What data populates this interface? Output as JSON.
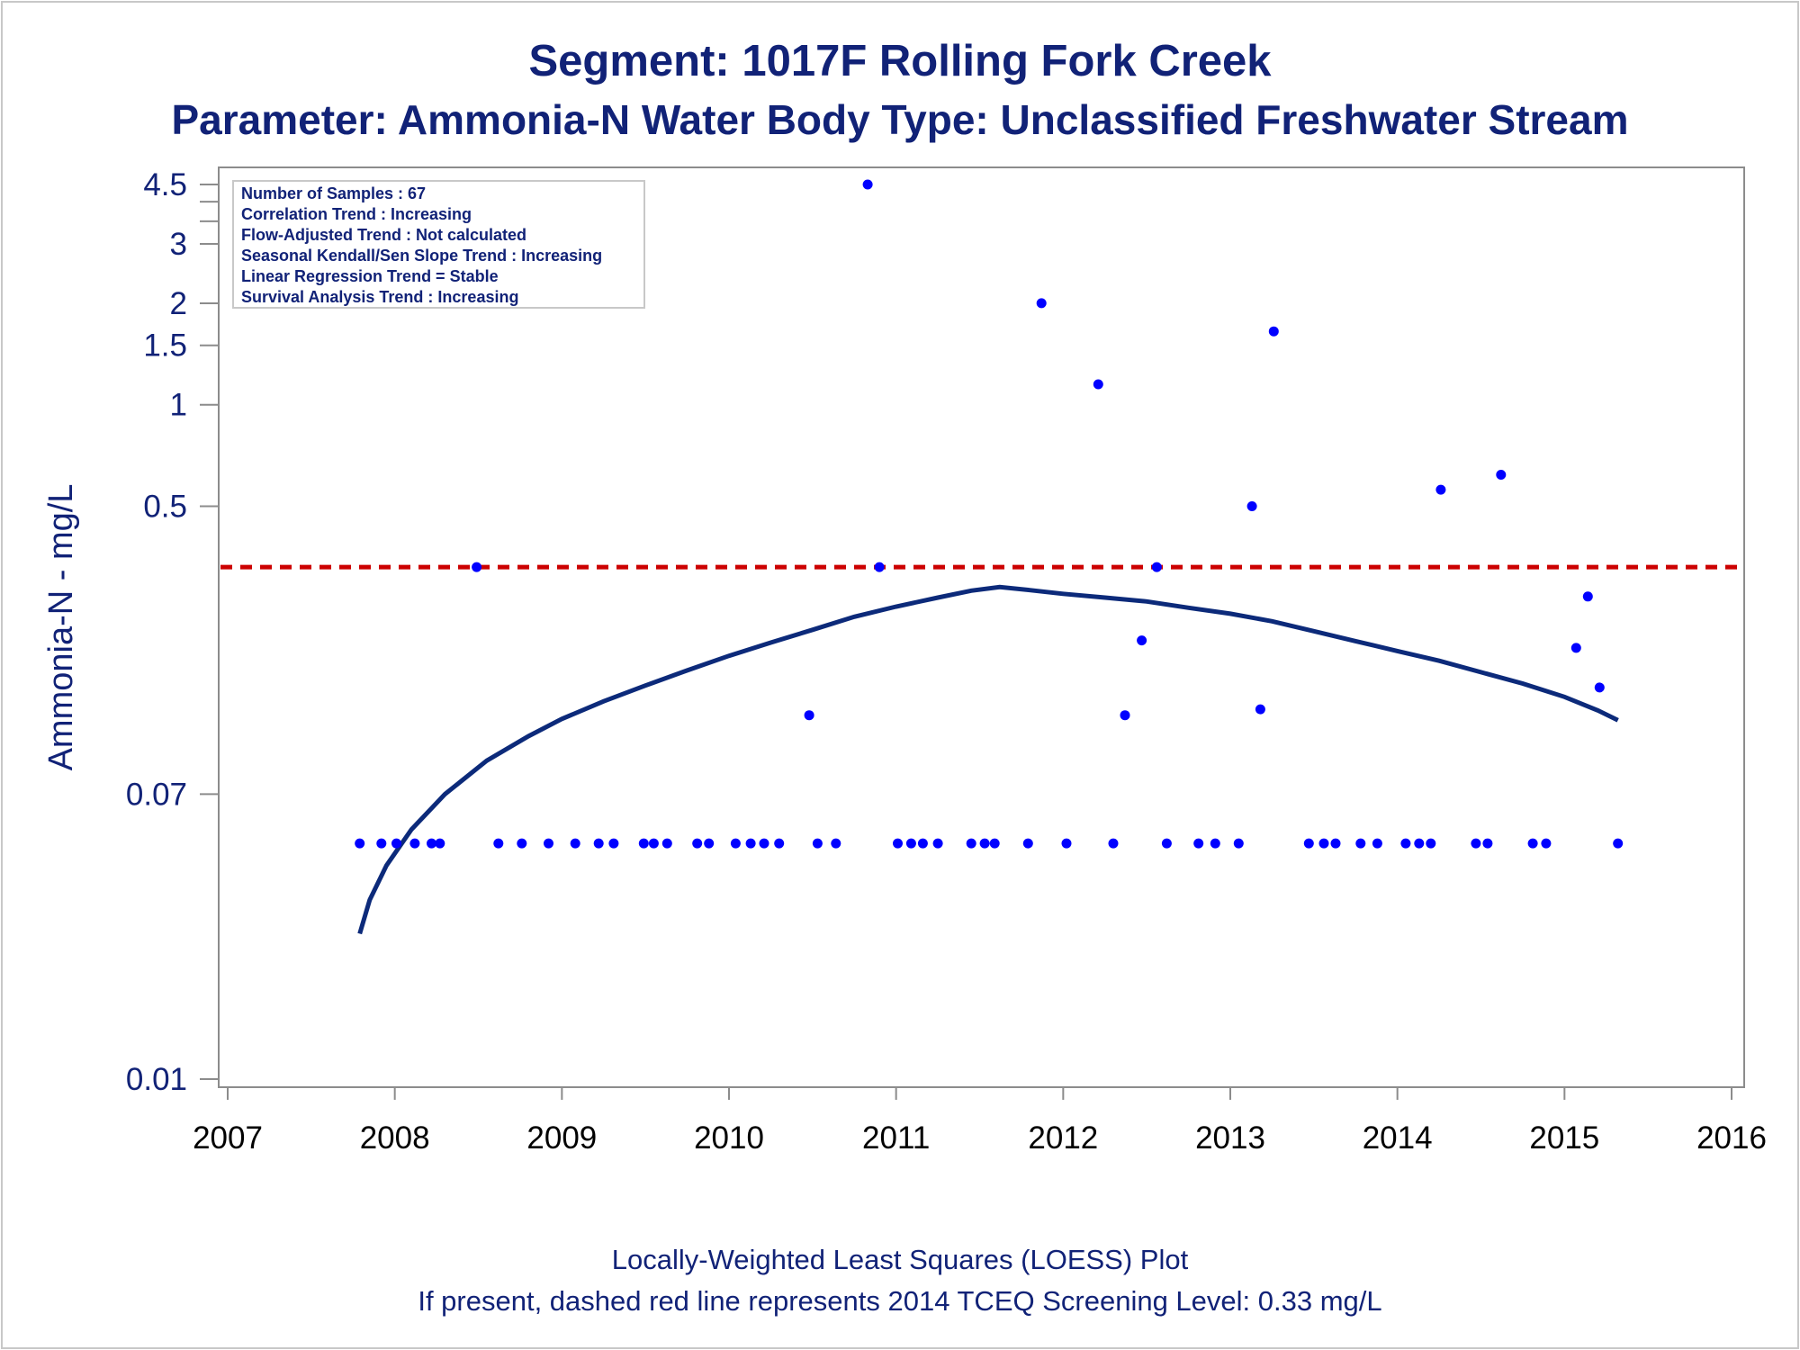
{
  "titles": {
    "line1": "Segment: 1017F  Rolling Fork Creek",
    "line2": "Parameter: Ammonia-N   Water Body Type: Unclassified Freshwater Stream"
  },
  "footnotes": {
    "line1": "Locally-Weighted Least Squares (LOESS) Plot",
    "line2": "If present, dashed red line represents 2014 TCEQ Screening Level: 0.33 mg/L"
  },
  "stats_box": [
    "Number of Samples : 67",
    "Correlation Trend : Increasing",
    "Flow-Adjusted Trend : Not calculated",
    "Seasonal Kendall/Sen Slope Trend : Increasing",
    "Linear Regression Trend = Stable",
    "Survival Analysis Trend : Increasing"
  ],
  "colors": {
    "text": "#112277",
    "points": "#0000ff",
    "loess": "#0c2a7a",
    "screening": "#cc0000",
    "axis": "#8c8c8c"
  },
  "chart_data": {
    "type": "scatter",
    "ylabel": "Ammonia-N - mg/L",
    "xlabel": "",
    "yscale": "log",
    "xlim": [
      2007,
      2016
    ],
    "ylim": [
      0.01,
      4.5
    ],
    "x_ticks": [
      "2007",
      "2008",
      "2009",
      "2010",
      "2011",
      "2012",
      "2013",
      "2014",
      "2015",
      "2016"
    ],
    "y_ticks": [
      {
        "value": 0.01,
        "label": "0.01"
      },
      {
        "value": 0.07,
        "label": "0.07"
      },
      {
        "value": 0.5,
        "label": "0.5"
      },
      {
        "value": 1,
        "label": "1"
      },
      {
        "value": 1.5,
        "label": "1.5"
      },
      {
        "value": 2,
        "label": "2"
      },
      {
        "value": 3,
        "label": "3"
      },
      {
        "value": 4.5,
        "label": "4.5"
      }
    ],
    "y_minor_ticks": [
      3.5,
      4
    ],
    "screening_level": 0.33,
    "points": [
      [
        2007.79,
        0.05
      ],
      [
        2007.92,
        0.05
      ],
      [
        2008.01,
        0.05
      ],
      [
        2008.12,
        0.05
      ],
      [
        2008.22,
        0.05
      ],
      [
        2008.27,
        0.05
      ],
      [
        2008.49,
        0.33
      ],
      [
        2008.62,
        0.05
      ],
      [
        2008.76,
        0.05
      ],
      [
        2008.92,
        0.05
      ],
      [
        2009.08,
        0.05
      ],
      [
        2009.22,
        0.05
      ],
      [
        2009.31,
        0.05
      ],
      [
        2009.49,
        0.05
      ],
      [
        2009.55,
        0.05
      ],
      [
        2009.63,
        0.05
      ],
      [
        2009.81,
        0.05
      ],
      [
        2009.88,
        0.05
      ],
      [
        2010.04,
        0.05
      ],
      [
        2010.13,
        0.05
      ],
      [
        2010.21,
        0.05
      ],
      [
        2010.3,
        0.05
      ],
      [
        2010.48,
        0.12
      ],
      [
        2010.53,
        0.05
      ],
      [
        2010.64,
        0.05
      ],
      [
        2010.83,
        4.5
      ],
      [
        2010.9,
        0.33
      ],
      [
        2011.01,
        0.05
      ],
      [
        2011.09,
        0.05
      ],
      [
        2011.16,
        0.05
      ],
      [
        2011.25,
        0.05
      ],
      [
        2011.45,
        0.05
      ],
      [
        2011.53,
        0.05
      ],
      [
        2011.59,
        0.05
      ],
      [
        2011.79,
        0.05
      ],
      [
        2011.87,
        2.0
      ],
      [
        2012.02,
        0.05
      ],
      [
        2012.21,
        1.15
      ],
      [
        2012.3,
        0.05
      ],
      [
        2012.37,
        0.12
      ],
      [
        2012.47,
        0.2
      ],
      [
        2012.56,
        0.33
      ],
      [
        2012.62,
        0.05
      ],
      [
        2012.81,
        0.05
      ],
      [
        2012.91,
        0.05
      ],
      [
        2013.05,
        0.05
      ],
      [
        2013.13,
        0.5
      ],
      [
        2013.18,
        0.125
      ],
      [
        2013.26,
        1.65
      ],
      [
        2013.47,
        0.05
      ],
      [
        2013.56,
        0.05
      ],
      [
        2013.63,
        0.05
      ],
      [
        2013.78,
        0.05
      ],
      [
        2013.88,
        0.05
      ],
      [
        2014.05,
        0.05
      ],
      [
        2014.13,
        0.05
      ],
      [
        2014.2,
        0.05
      ],
      [
        2014.26,
        0.56
      ],
      [
        2014.47,
        0.05
      ],
      [
        2014.54,
        0.05
      ],
      [
        2014.62,
        0.62
      ],
      [
        2014.81,
        0.05
      ],
      [
        2014.89,
        0.05
      ],
      [
        2015.07,
        0.19
      ],
      [
        2015.14,
        0.27
      ],
      [
        2015.21,
        0.145
      ],
      [
        2015.32,
        0.05
      ]
    ],
    "loess_curve": [
      [
        2007.79,
        0.027
      ],
      [
        2007.85,
        0.034
      ],
      [
        2007.95,
        0.043
      ],
      [
        2008.1,
        0.055
      ],
      [
        2008.3,
        0.07
      ],
      [
        2008.55,
        0.088
      ],
      [
        2008.8,
        0.104
      ],
      [
        2009.0,
        0.117
      ],
      [
        2009.25,
        0.132
      ],
      [
        2009.5,
        0.147
      ],
      [
        2009.75,
        0.163
      ],
      [
        2010.0,
        0.18
      ],
      [
        2010.25,
        0.197
      ],
      [
        2010.5,
        0.215
      ],
      [
        2010.75,
        0.235
      ],
      [
        2011.0,
        0.252
      ],
      [
        2011.25,
        0.268
      ],
      [
        2011.45,
        0.281
      ],
      [
        2011.62,
        0.288
      ],
      [
        2011.8,
        0.282
      ],
      [
        2012.0,
        0.275
      ],
      [
        2012.25,
        0.268
      ],
      [
        2012.5,
        0.261
      ],
      [
        2012.75,
        0.25
      ],
      [
        2013.0,
        0.24
      ],
      [
        2013.25,
        0.228
      ],
      [
        2013.5,
        0.213
      ],
      [
        2013.75,
        0.199
      ],
      [
        2014.0,
        0.186
      ],
      [
        2014.25,
        0.174
      ],
      [
        2014.5,
        0.161
      ],
      [
        2014.75,
        0.149
      ],
      [
        2015.0,
        0.136
      ],
      [
        2015.2,
        0.124
      ],
      [
        2015.32,
        0.116
      ]
    ]
  }
}
